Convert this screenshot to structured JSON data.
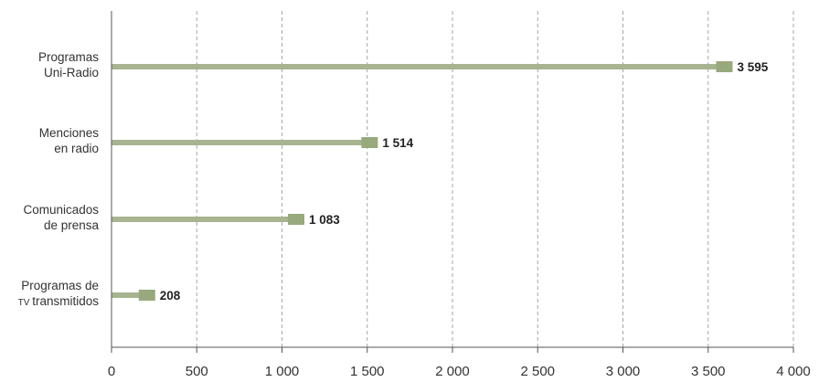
{
  "chart_data": {
    "type": "bar",
    "orientation": "horizontal",
    "categories": [
      [
        "Programas",
        "Uni-Radio"
      ],
      [
        "Menciones",
        "en radio"
      ],
      [
        "Comunicados",
        "de prensa"
      ],
      [
        "Programas de",
        "TV transmitidos"
      ]
    ],
    "values": [
      3595,
      1514,
      1083,
      208
    ],
    "value_labels": [
      "3 595",
      "1 514",
      "1 083",
      "208"
    ],
    "xlim": [
      0,
      4000
    ],
    "xticks": [
      0,
      500,
      1000,
      1500,
      2000,
      2500,
      3000,
      3500,
      4000
    ],
    "xtick_labels": [
      "0",
      "500",
      "1 000",
      "1 500",
      "2 000",
      "2 500",
      "3 000",
      "3 500",
      "4 000"
    ],
    "grid": "vertical-dashed",
    "title": "",
    "xlabel": "",
    "ylabel": "",
    "colors": {
      "bar": "#a7b48f",
      "marker": "#98a97e",
      "grid": "#a6a6a6",
      "axis": "#555555",
      "text": "#333333"
    }
  }
}
